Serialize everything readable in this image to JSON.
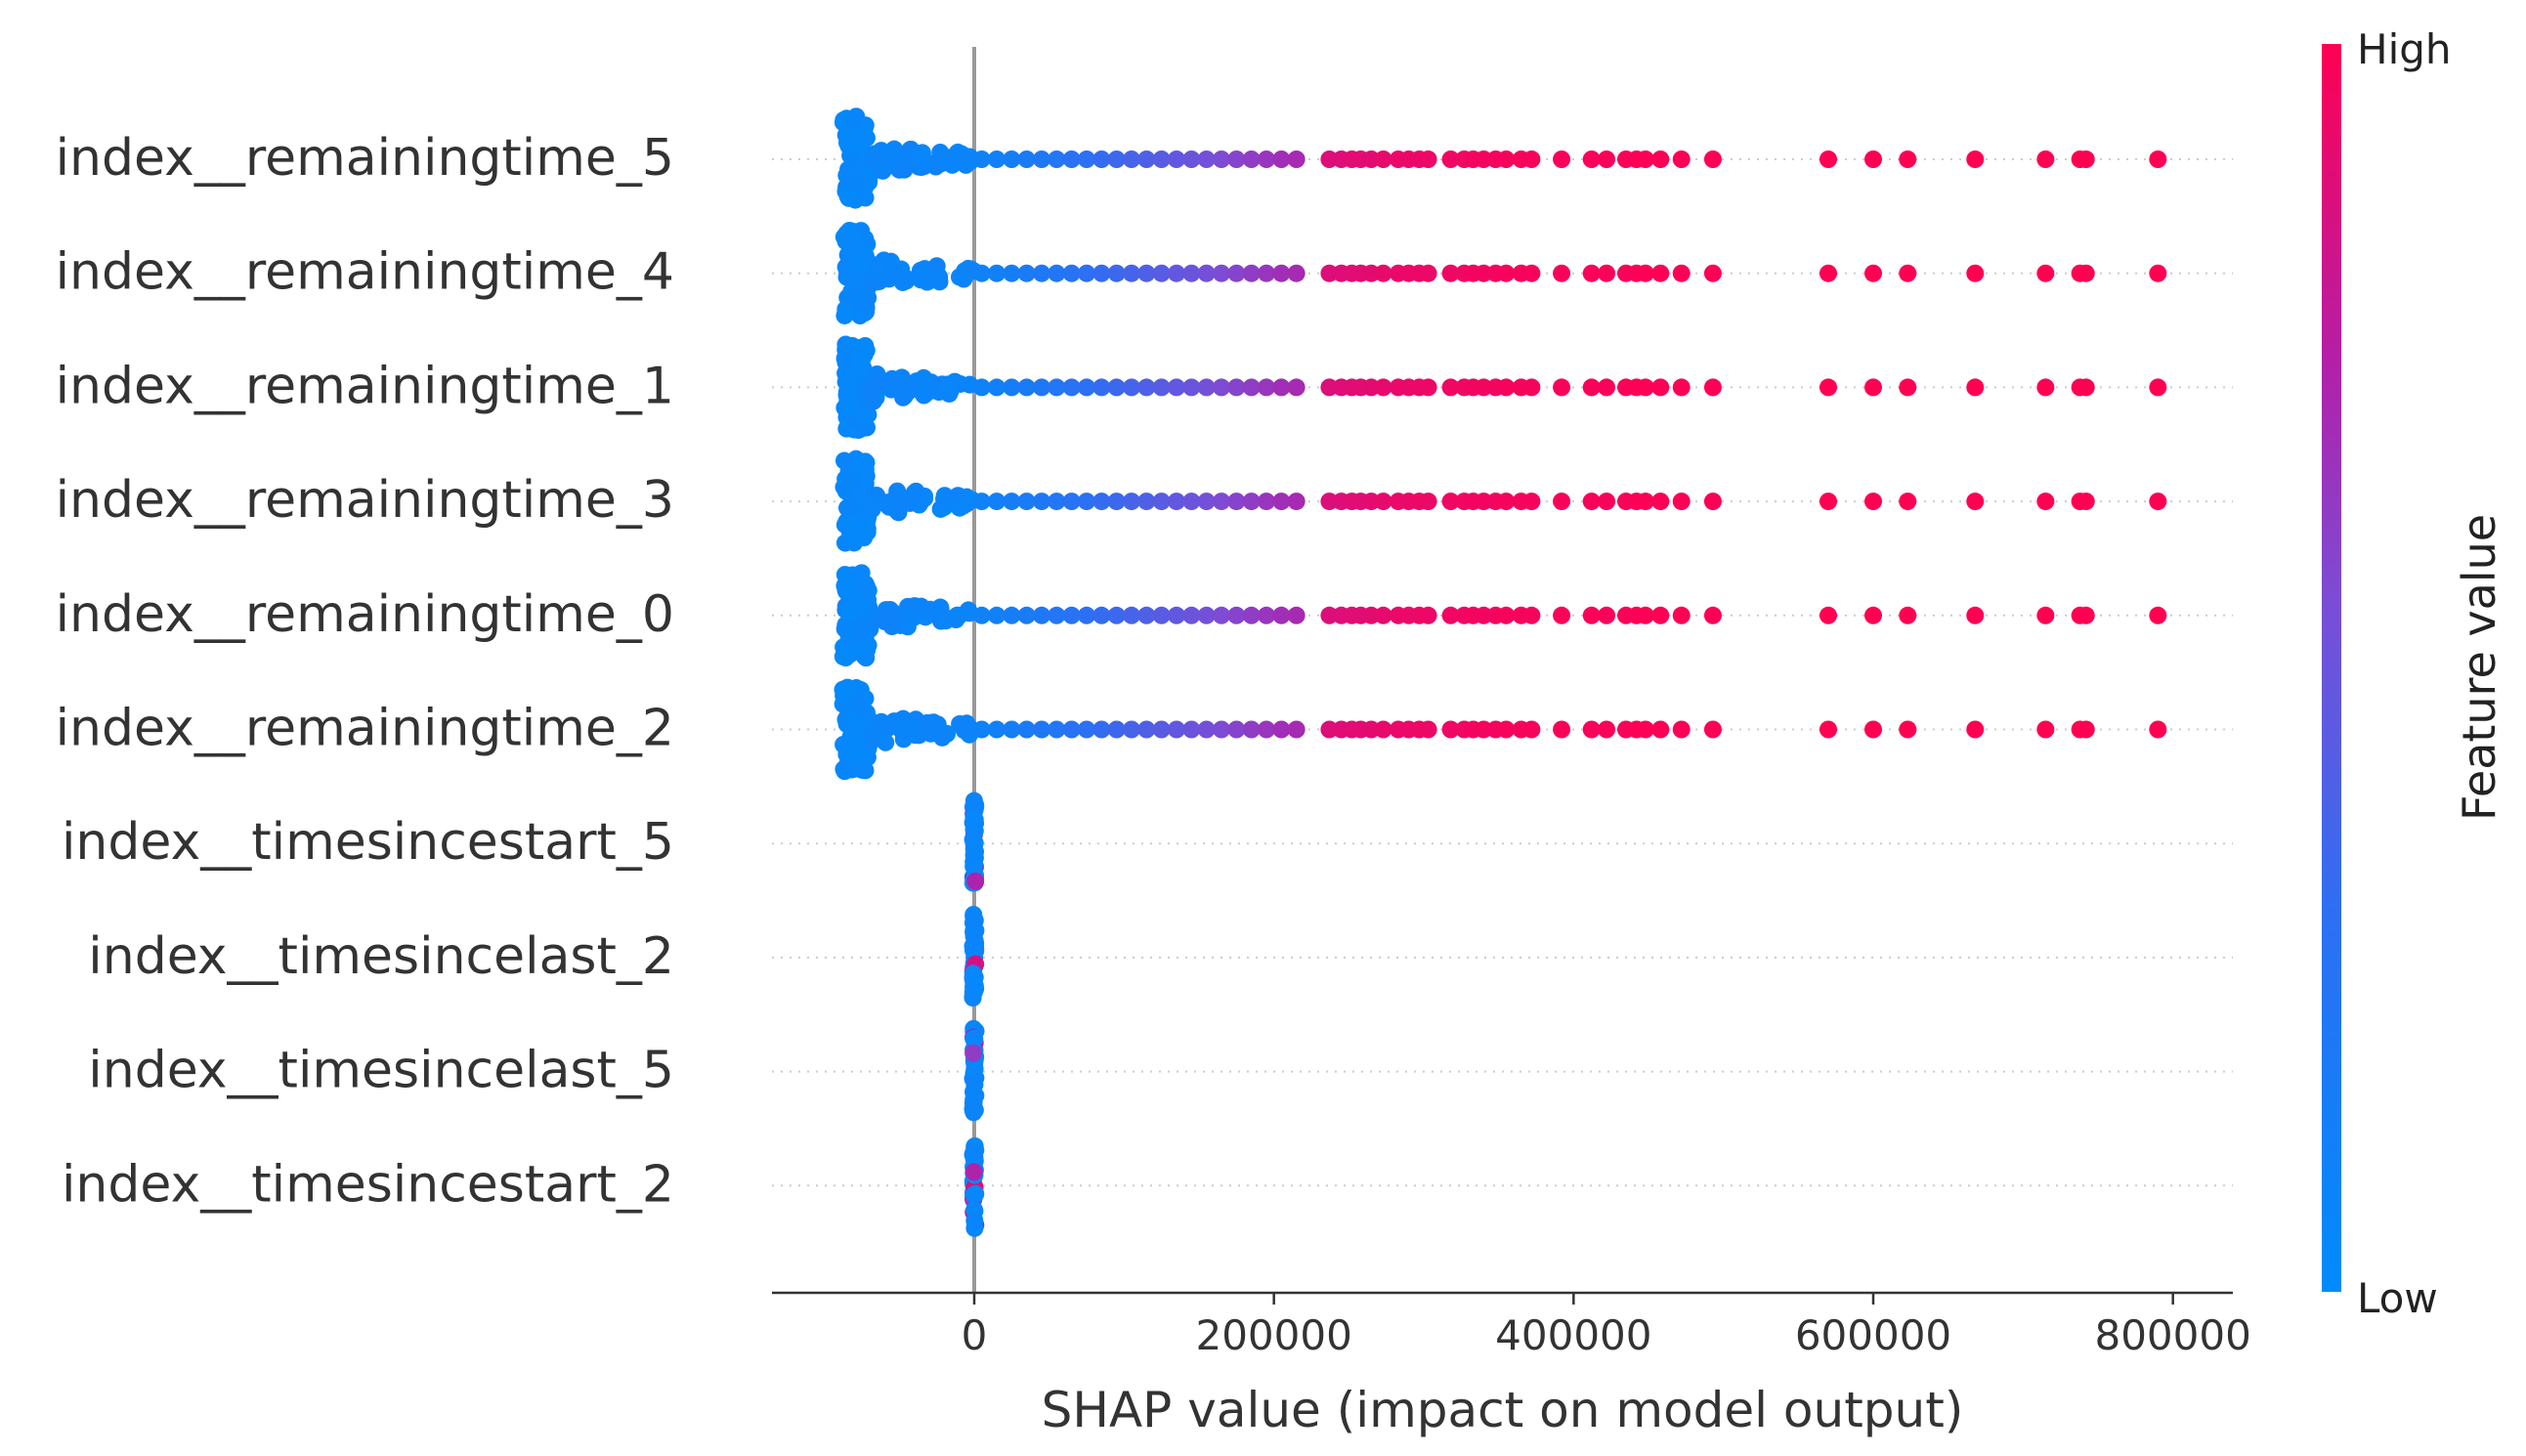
{
  "chart_data": {
    "type": "scatter",
    "subtype": "shap-beeswarm",
    "xlabel": "SHAP value (impact on model output)",
    "xlim": [
      -135000,
      840000
    ],
    "x_ticks": [
      0,
      200000,
      400000,
      600000,
      800000
    ],
    "x_tick_labels": [
      "0",
      "200000",
      "400000",
      "600000",
      "800000"
    ],
    "features": [
      "index__remainingtime_5",
      "index__remainingtime_4",
      "index__remainingtime_1",
      "index__remainingtime_3",
      "index__remainingtime_0",
      "index__remainingtime_2",
      "index__timesincestart_5",
      "index__timesincelast_2",
      "index__timesincelast_5",
      "index__timesincestart_2"
    ],
    "colorbar": {
      "label": "Feature value",
      "high_label": "High",
      "low_label": "Low",
      "low_color": "#008bfb",
      "high_color": "#ff0052"
    },
    "remainingtime_points": [
      {
        "x": 5000,
        "v": 0.1
      },
      {
        "x": 15000,
        "v": 0.12
      },
      {
        "x": 25000,
        "v": 0.14
      },
      {
        "x": 35000,
        "v": 0.17
      },
      {
        "x": 45000,
        "v": 0.2
      },
      {
        "x": 55000,
        "v": 0.23
      },
      {
        "x": 65000,
        "v": 0.26
      },
      {
        "x": 75000,
        "v": 0.29
      },
      {
        "x": 85000,
        "v": 0.32
      },
      {
        "x": 95000,
        "v": 0.35
      },
      {
        "x": 105000,
        "v": 0.38
      },
      {
        "x": 115000,
        "v": 0.41
      },
      {
        "x": 125000,
        "v": 0.44
      },
      {
        "x": 135000,
        "v": 0.47
      },
      {
        "x": 145000,
        "v": 0.5
      },
      {
        "x": 155000,
        "v": 0.53
      },
      {
        "x": 165000,
        "v": 0.56
      },
      {
        "x": 175000,
        "v": 0.59
      },
      {
        "x": 185000,
        "v": 0.62
      },
      {
        "x": 195000,
        "v": 0.65
      },
      {
        "x": 205000,
        "v": 0.68
      },
      {
        "x": 215000,
        "v": 0.7
      },
      {
        "x": 237000,
        "v": 0.88
      },
      {
        "x": 245000,
        "v": 0.89
      },
      {
        "x": 252000,
        "v": 0.9
      },
      {
        "x": 258000,
        "v": 0.9
      },
      {
        "x": 265000,
        "v": 0.91
      },
      {
        "x": 273000,
        "v": 0.92
      },
      {
        "x": 283000,
        "v": 0.93
      },
      {
        "x": 290000,
        "v": 0.93
      },
      {
        "x": 297000,
        "v": 0.94
      },
      {
        "x": 303000,
        "v": 0.94
      },
      {
        "x": 318000,
        "v": 0.95
      },
      {
        "x": 327000,
        "v": 0.95
      },
      {
        "x": 333000,
        "v": 0.96
      },
      {
        "x": 340000,
        "v": 0.96
      },
      {
        "x": 348000,
        "v": 0.96
      },
      {
        "x": 355000,
        "v": 0.97
      },
      {
        "x": 365000,
        "v": 0.97
      },
      {
        "x": 372000,
        "v": 0.97
      },
      {
        "x": 392000,
        "v": 0.98
      },
      {
        "x": 412000,
        "v": 0.98
      },
      {
        "x": 422000,
        "v": 0.98
      },
      {
        "x": 435000,
        "v": 0.98
      },
      {
        "x": 442000,
        "v": 0.99
      },
      {
        "x": 448000,
        "v": 0.99
      },
      {
        "x": 458000,
        "v": 0.99
      },
      {
        "x": 472000,
        "v": 0.99
      },
      {
        "x": 493000,
        "v": 0.99
      },
      {
        "x": 570000,
        "v": 1.0
      },
      {
        "x": 600000,
        "v": 1.0
      },
      {
        "x": 623000,
        "v": 1.0
      },
      {
        "x": 668000,
        "v": 1.0
      },
      {
        "x": 715000,
        "v": 1.0
      },
      {
        "x": 738000,
        "v": 1.0
      },
      {
        "x": 742000,
        "v": 1.0
      },
      {
        "x": 790000,
        "v": 1.0
      }
    ]
  }
}
